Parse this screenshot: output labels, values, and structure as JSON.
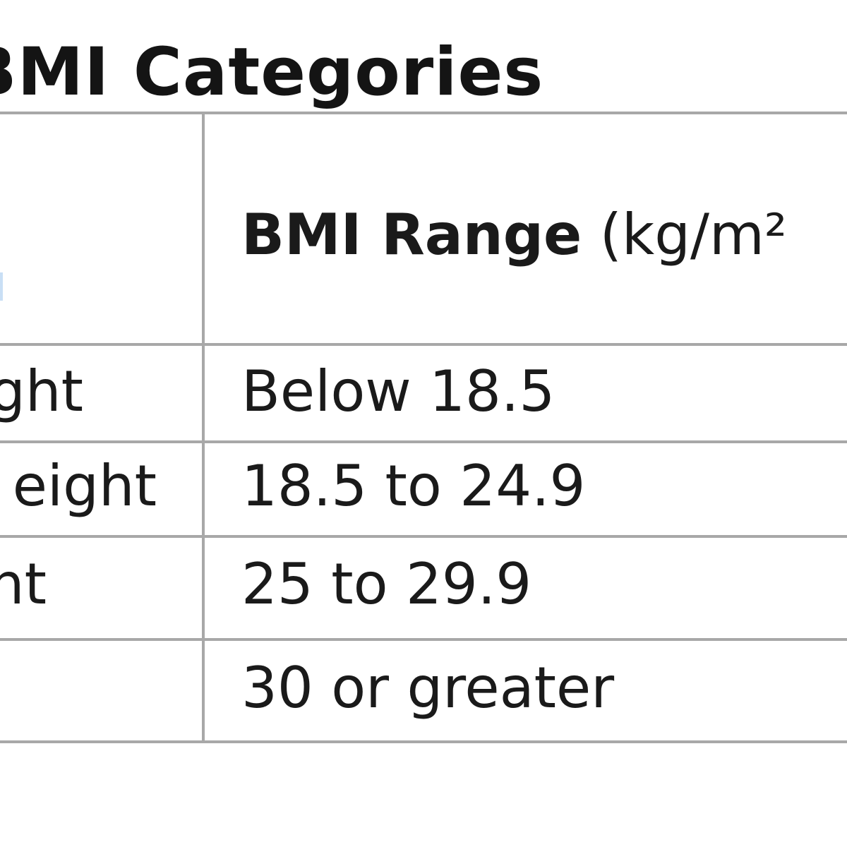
{
  "title": "d BMI Categories",
  "table": {
    "header": {
      "range_bold": "BMI Range",
      "range_unit": " (kg/m²"
    },
    "rows": [
      {
        "category": "ght",
        "range": "Below 18.5"
      },
      {
        "category": "eight",
        "range": "18.5 to 24.9"
      },
      {
        "category": "nt",
        "range": "25 to 29.9"
      },
      {
        "category": "",
        "range": "30 or greater"
      }
    ]
  },
  "colors": {
    "rule": "#a8a8a8",
    "text": "#1a1a1a"
  }
}
